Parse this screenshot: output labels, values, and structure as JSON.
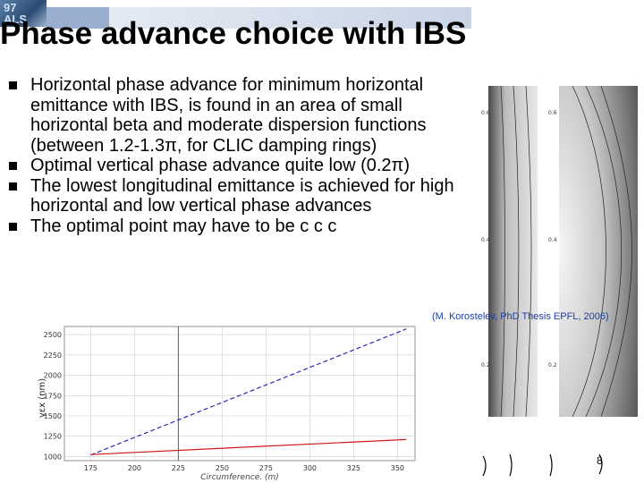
{
  "slide": {
    "logo_text": "97\nALS",
    "title": "Phase advance choice with IBS",
    "bullets": [
      "Horizontal phase advance for minimum horizontal emittance with IBS, is found in an area of small horizontal beta and moderate dispersion functions (between 1.2-1.3π, for CLIC damping rings)",
      "Optimal vertical phase advance quite low (0.2π)",
      "The lowest longitudinal emittance is achieved for high horizontal and low vertical phase advances",
      "The optimal point may have to be c c c"
    ],
    "caption": "(M. Korostelev, PhD Thesis EPFL, 2006)",
    "page_number": "8"
  },
  "chart_data": {
    "type": "line",
    "xlabel": "Circumference. (m)",
    "ylabel": "γεx (nm)",
    "xlim": [
      160,
      360
    ],
    "ylim": [
      950,
      2600
    ],
    "xticks": [
      175,
      200,
      225,
      250,
      275,
      300,
      325,
      350
    ],
    "yticks": [
      1000,
      1250,
      1500,
      1750,
      2000,
      2250,
      2500
    ],
    "vline_x": 225,
    "series": [
      {
        "style": "dashed",
        "color": "#2a2ab0",
        "x": [
          175,
          355
        ],
        "y": [
          1020,
          2570
        ]
      },
      {
        "style": "solid",
        "color": "#d01818",
        "x": [
          175,
          355
        ],
        "y": [
          1025,
          1210
        ]
      }
    ]
  }
}
